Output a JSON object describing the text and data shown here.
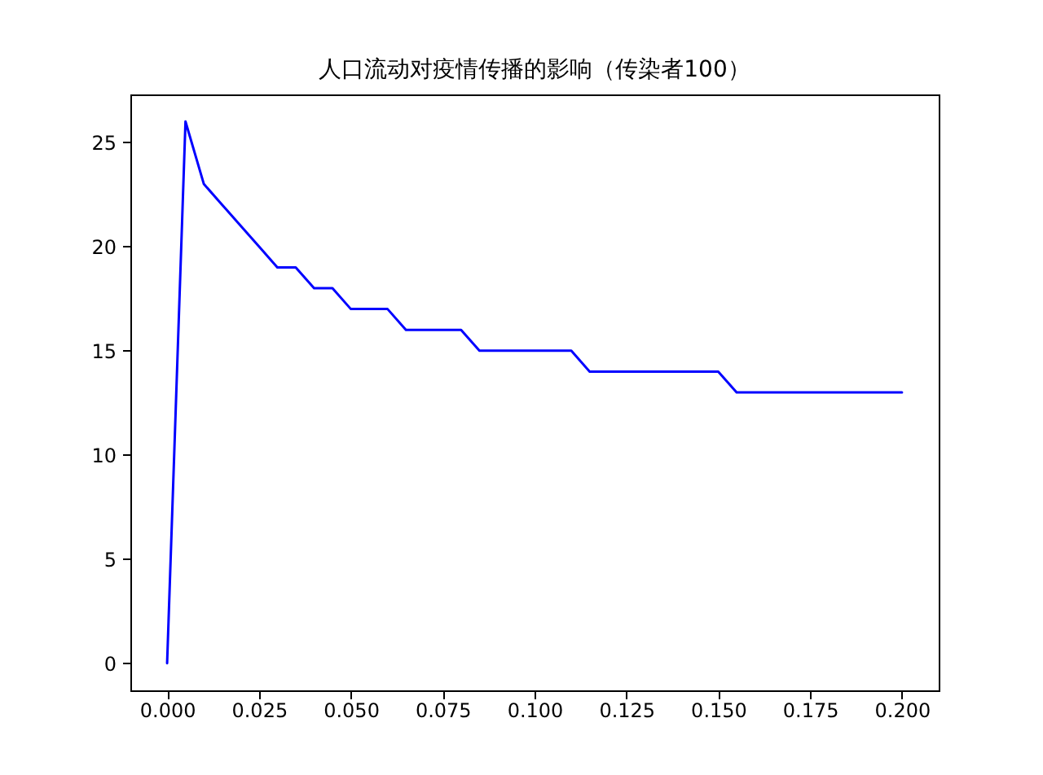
{
  "chart_data": {
    "type": "line",
    "title": "人口流动对疫情传播的影响（传染者100）",
    "x": [
      0,
      0.005,
      0.01,
      0.015,
      0.02,
      0.025,
      0.03,
      0.035,
      0.04,
      0.045,
      0.05,
      0.055,
      0.06,
      0.065,
      0.07,
      0.075,
      0.08,
      0.085,
      0.09,
      0.095,
      0.1,
      0.105,
      0.11,
      0.115,
      0.12,
      0.125,
      0.13,
      0.135,
      0.14,
      0.145,
      0.15,
      0.155,
      0.16,
      0.165,
      0.17,
      0.175,
      0.18,
      0.185,
      0.19,
      0.195,
      0.2
    ],
    "series": [
      {
        "color": "#0000ff",
        "values": [
          0,
          26,
          23,
          22,
          21,
          20,
          19,
          19,
          18,
          18,
          17,
          17,
          17,
          16,
          16,
          16,
          16,
          15,
          15,
          15,
          15,
          15,
          15,
          14,
          14,
          14,
          14,
          14,
          14,
          14,
          14,
          13,
          13,
          13,
          13,
          13,
          13,
          13,
          13,
          13,
          13
        ]
      }
    ],
    "xlim": [
      -0.01,
      0.21
    ],
    "ylim": [
      -1.3,
      27.3
    ],
    "xticks": [
      {
        "value": 0,
        "label": "0.000"
      },
      {
        "value": 0.025,
        "label": "0.025"
      },
      {
        "value": 0.05,
        "label": "0.050"
      },
      {
        "value": 0.075,
        "label": "0.075"
      },
      {
        "value": 0.1,
        "label": "0.100"
      },
      {
        "value": 0.125,
        "label": "0.125"
      },
      {
        "value": 0.15,
        "label": "0.150"
      },
      {
        "value": 0.175,
        "label": "0.175"
      },
      {
        "value": 0.2,
        "label": "0.200"
      }
    ],
    "yticks": [
      0,
      5,
      10,
      15,
      20,
      25
    ],
    "grid": false,
    "marker": "none",
    "line_style": "solid"
  }
}
